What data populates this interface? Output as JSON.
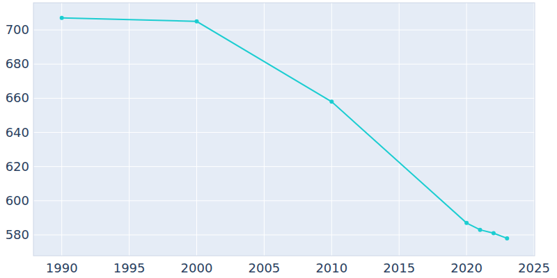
{
  "chart_data": {
    "type": "line",
    "x": [
      1990,
      2000,
      2010,
      2020,
      2021,
      2022,
      2023
    ],
    "values": [
      707,
      705,
      658,
      587,
      583,
      581,
      578
    ],
    "color": "#1ccdd1",
    "marker": "circle",
    "xlim": [
      1987.9,
      2025.05
    ],
    "ylim": [
      567.8,
      715.9
    ],
    "xticks": [
      1990,
      1995,
      2000,
      2005,
      2010,
      2015,
      2020,
      2025
    ],
    "yticks": [
      580,
      600,
      620,
      640,
      660,
      680,
      700
    ],
    "grid": true
  }
}
